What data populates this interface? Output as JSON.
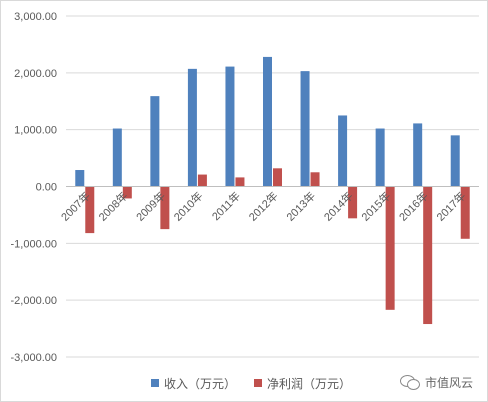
{
  "chart_data": {
    "type": "bar",
    "categories": [
      "2007年",
      "2008年",
      "2009年",
      "2010年",
      "2011年",
      "2012年",
      "2013年",
      "2014年",
      "2015年",
      "2016年",
      "2017年"
    ],
    "series": [
      {
        "name": "收入（万元）",
        "color": "#4f81bd",
        "values": [
          290,
          1020,
          1590,
          2070,
          2110,
          2280,
          2030,
          1250,
          1020,
          1110,
          900
        ]
      },
      {
        "name": "净利润（万元）",
        "color": "#c0504d",
        "values": [
          -820,
          -210,
          -750,
          210,
          160,
          320,
          250,
          -560,
          -2170,
          -2420,
          -920
        ]
      }
    ],
    "yticks": [
      "3,000.00",
      "2,000.00",
      "1,000.00",
      "0.00",
      "-1,000.00",
      "-2,000.00",
      "-3,000.00"
    ],
    "ylim": [
      -3000,
      3000
    ],
    "grid": true,
    "legend_position": "bottom"
  },
  "watermark": {
    "text": "市值风云",
    "icon": "wechat-icon"
  }
}
